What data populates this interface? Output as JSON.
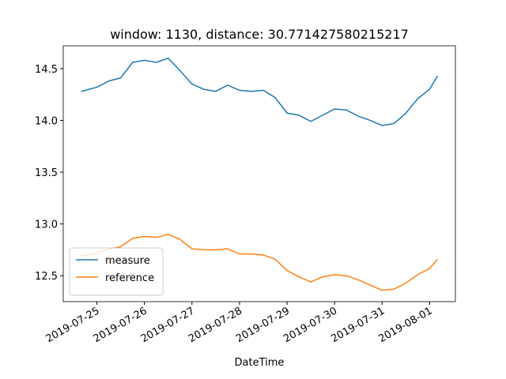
{
  "chart_data": {
    "type": "line",
    "title": "window: 1130, distance: 30.771427580215217",
    "x_label": "DateTime",
    "x": [
      "2019-07-24 16:00",
      "2019-07-24 20:00",
      "2019-07-25 00:00",
      "2019-07-25 06:00",
      "2019-07-25 12:00",
      "2019-07-25 18:00",
      "2019-07-26 00:00",
      "2019-07-26 06:00",
      "2019-07-26 12:00",
      "2019-07-26 18:00",
      "2019-07-27 00:00",
      "2019-07-27 06:00",
      "2019-07-27 12:00",
      "2019-07-27 18:00",
      "2019-07-28 00:00",
      "2019-07-28 06:00",
      "2019-07-28 12:00",
      "2019-07-28 18:00",
      "2019-07-29 00:00",
      "2019-07-29 06:00",
      "2019-07-29 12:00",
      "2019-07-29 18:00",
      "2019-07-30 00:00",
      "2019-07-30 06:00",
      "2019-07-30 12:00",
      "2019-07-30 18:00",
      "2019-07-31 00:00",
      "2019-07-31 06:00",
      "2019-07-31 12:00",
      "2019-07-31 18:00",
      "2019-08-01 00:00",
      "2019-08-01 04:00"
    ],
    "series": [
      {
        "name": "measure",
        "color": "#1f77b4",
        "values": [
          14.28,
          14.3,
          14.32,
          14.38,
          14.41,
          14.56,
          14.58,
          14.56,
          14.6,
          14.48,
          14.35,
          14.3,
          14.28,
          14.34,
          14.29,
          14.28,
          14.29,
          14.22,
          14.07,
          14.05,
          13.99,
          14.05,
          14.11,
          14.1,
          14.04,
          14.0,
          13.95,
          13.97,
          14.07,
          14.21,
          14.3,
          14.43
        ]
      },
      {
        "name": "reference",
        "color": "#ff7f0e",
        "values": [
          12.69,
          12.7,
          12.72,
          12.76,
          12.78,
          12.86,
          12.88,
          12.87,
          12.9,
          12.85,
          12.76,
          12.75,
          12.75,
          12.76,
          12.71,
          12.71,
          12.7,
          12.66,
          12.55,
          12.49,
          12.44,
          12.49,
          12.51,
          12.5,
          12.46,
          12.41,
          12.36,
          12.37,
          12.43,
          12.51,
          12.57,
          12.66
        ]
      }
    ],
    "xlim": [
      "2019-07-24 07:00",
      "2019-08-01 13:00"
    ],
    "xticks": [
      "2019-07-25",
      "2019-07-26",
      "2019-07-27",
      "2019-07-28",
      "2019-07-29",
      "2019-07-30",
      "2019-07-31",
      "2019-08-01"
    ],
    "ylim": [
      12.25,
      14.72
    ],
    "yticks": [
      12.5,
      {
        "value": 13.0,
        "label": "13.0"
      },
      13.5,
      {
        "value": 14.0,
        "label": "14.0"
      },
      14.5
    ],
    "grid": false,
    "legend": "lower left"
  }
}
